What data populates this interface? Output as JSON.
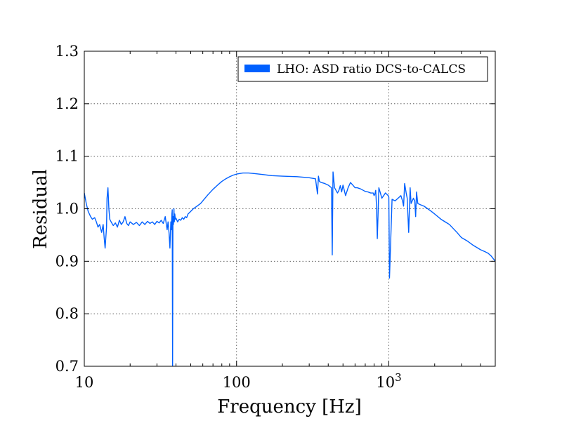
{
  "chart_data": {
    "type": "line",
    "xlabel": "Frequency [Hz]",
    "ylabel": "Residual",
    "xscale": "log",
    "xlim": [
      10,
      5000
    ],
    "ylim": [
      0.7,
      1.3
    ],
    "grid": true,
    "legend_position": "top-right",
    "x_tick_labels": [
      {
        "value": 10,
        "base": "10",
        "exp": ""
      },
      {
        "value": 100,
        "base": "100",
        "exp": ""
      },
      {
        "value": 1000,
        "base": "10",
        "exp": "3"
      }
    ],
    "y_ticks": [
      0.7,
      0.8,
      0.9,
      1.0,
      1.1,
      1.2,
      1.3
    ],
    "y_tick_labels": [
      "0.7",
      "0.8",
      "0.9",
      "1.0",
      "1.1",
      "1.2",
      "1.3"
    ],
    "series": [
      {
        "name": "LHO: ASD ratio DCS-to-CALCS",
        "color": "#0060ff",
        "x": [
          10,
          10.3,
          10.6,
          11,
          11.3,
          11.7,
          12,
          12.3,
          12.6,
          13,
          13.3,
          13.5,
          13.7,
          14,
          14.1,
          14.3,
          14.5,
          14.7,
          15,
          15.5,
          16,
          16.5,
          17,
          17.5,
          18,
          18.5,
          19,
          19.5,
          20,
          21,
          22,
          23,
          24,
          25,
          26,
          27,
          28,
          29,
          30,
          31,
          32,
          33,
          34,
          35,
          35.5,
          36,
          36.5,
          37,
          37.3,
          37.6,
          37.8,
          38,
          38.2,
          38.5,
          38.8,
          39,
          39.3,
          39.6,
          40,
          41,
          42,
          43,
          44,
          45,
          46,
          47,
          48,
          50,
          52,
          55,
          58,
          60,
          62,
          65,
          70,
          75,
          80,
          85,
          90,
          95,
          100,
          110,
          120,
          130,
          140,
          150,
          170,
          200,
          250,
          300,
          330,
          340,
          345,
          350,
          360,
          380,
          400,
          420,
          425,
          430,
          440,
          450,
          460,
          470,
          480,
          490,
          500,
          520,
          540,
          560,
          580,
          600,
          620,
          650,
          680,
          700,
          730,
          760,
          790,
          800,
          810,
          820,
          830,
          840,
          860,
          880,
          900,
          950,
          990,
          1000,
          1010,
          1050,
          1100,
          1150,
          1200,
          1230,
          1250,
          1270,
          1300,
          1320,
          1350,
          1380,
          1400,
          1450,
          1480,
          1500,
          1520,
          1550,
          1600,
          1700,
          1800,
          1900,
          2000,
          2200,
          2500,
          2800,
          3000,
          3300,
          3600,
          4000,
          4300,
          4500,
          4700,
          5000
        ],
        "y": [
          1.03,
          1.01,
          0.995,
          0.985,
          0.98,
          0.983,
          0.975,
          0.965,
          0.97,
          0.955,
          0.97,
          0.945,
          0.925,
          0.965,
          1.02,
          1.04,
          1.0,
          0.98,
          0.975,
          0.968,
          0.973,
          0.965,
          0.978,
          0.97,
          0.975,
          0.985,
          0.972,
          0.968,
          0.975,
          0.97,
          0.974,
          0.968,
          0.975,
          0.97,
          0.976,
          0.972,
          0.975,
          0.97,
          0.976,
          0.973,
          0.978,
          0.972,
          0.985,
          0.96,
          0.975,
          0.955,
          0.925,
          0.975,
          0.96,
          0.99,
          0.998,
          0.7,
          0.985,
          0.97,
          1.0,
          0.975,
          0.99,
          0.98,
          0.982,
          0.975,
          0.98,
          0.978,
          0.983,
          0.98,
          0.985,
          0.983,
          0.99,
          0.995,
          1.0,
          1.005,
          1.01,
          1.015,
          1.02,
          1.027,
          1.037,
          1.045,
          1.052,
          1.057,
          1.061,
          1.064,
          1.066,
          1.068,
          1.068,
          1.067,
          1.066,
          1.065,
          1.063,
          1.062,
          1.061,
          1.059,
          1.057,
          1.028,
          1.062,
          1.052,
          1.05,
          1.048,
          1.045,
          1.04,
          0.912,
          1.07,
          1.04,
          1.035,
          1.03,
          1.035,
          1.044,
          1.032,
          1.045,
          1.025,
          1.04,
          1.05,
          1.045,
          1.04,
          1.04,
          1.038,
          1.035,
          1.033,
          1.032,
          1.03,
          1.03,
          1.025,
          1.028,
          1.035,
          1.005,
          0.943,
          1.04,
          1.03,
          1.02,
          1.03,
          1.025,
          1.022,
          0.868,
          1.018,
          1.015,
          1.02,
          1.025,
          1.015,
          1.005,
          1.048,
          1.03,
          1.02,
          0.955,
          1.04,
          1.01,
          1.02,
          1.015,
          0.985,
          1.032,
          1.01,
          1.008,
          1.005,
          1.0,
          0.995,
          0.99,
          0.98,
          0.97,
          0.955,
          0.945,
          0.938,
          0.93,
          0.922,
          0.918,
          0.915,
          0.91,
          0.9
        ]
      }
    ]
  }
}
